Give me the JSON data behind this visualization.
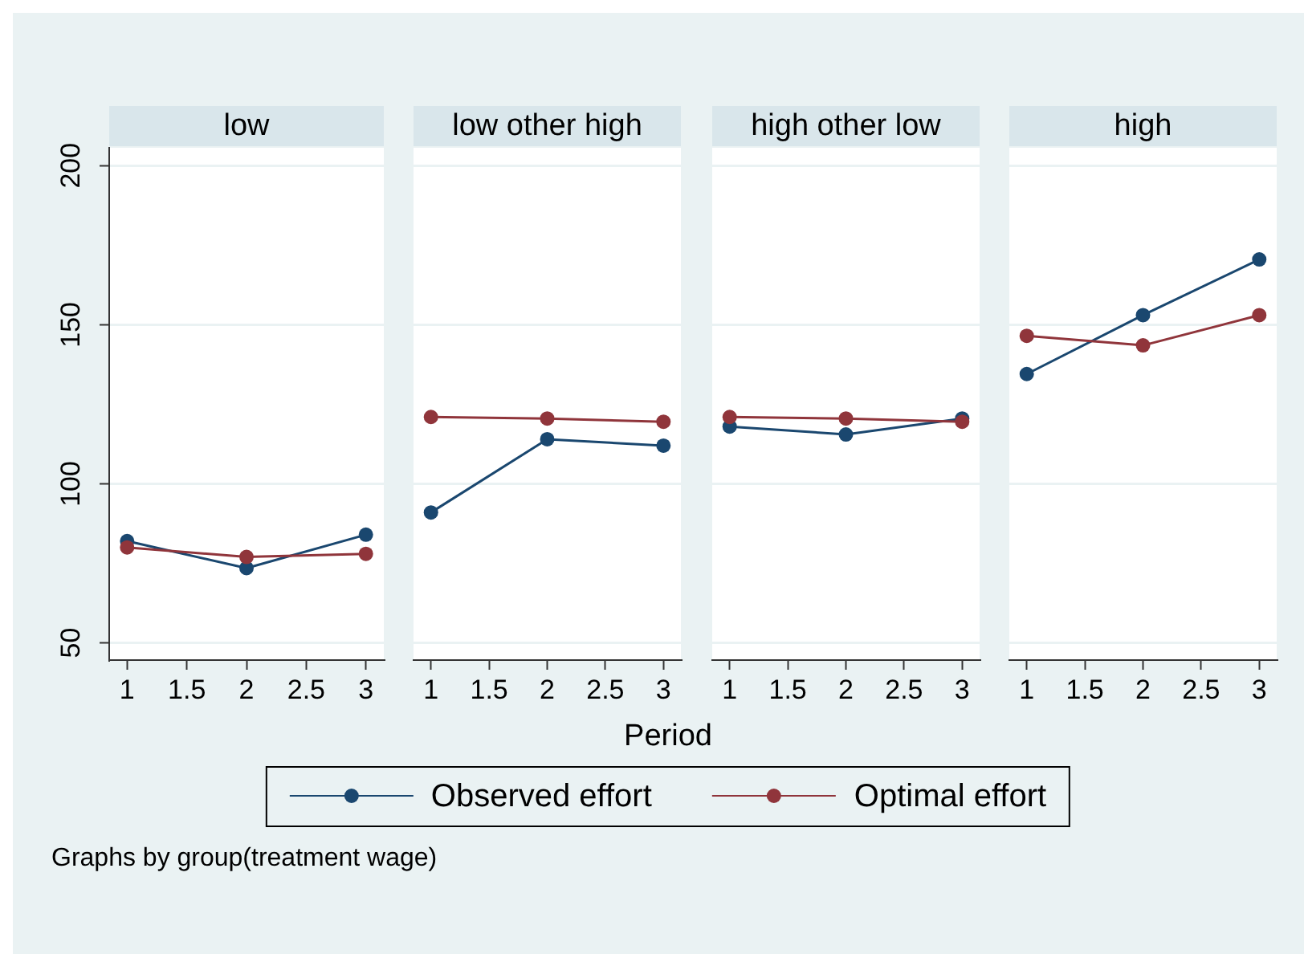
{
  "chart_data": [
    {
      "type": "line",
      "title": "low",
      "x": [
        1,
        2,
        3
      ],
      "series": [
        {
          "name": "Observed effort",
          "color": "#1a476f",
          "values": [
            82,
            73.5,
            84
          ]
        },
        {
          "name": "Optimal effort",
          "color": "#90353b",
          "values": [
            80,
            77,
            78
          ]
        }
      ],
      "xlim": [
        0.85,
        3.15
      ],
      "xticks": [
        1,
        1.5,
        2,
        2.5,
        3
      ],
      "ylim": [
        44.6,
        205.6
      ],
      "yticks": [
        50,
        100,
        150,
        200
      ],
      "grid": "y",
      "marker": "circle",
      "legend": "bottom",
      "annotations": [
        "Graphs by group(treatment wage)"
      ]
    },
    {
      "type": "line",
      "title": "low other high",
      "x": [
        1,
        2,
        3
      ],
      "series": [
        {
          "color": "#1a476f",
          "values": [
            91,
            114,
            112
          ]
        },
        {
          "color": "#90353b",
          "values": [
            121,
            120.5,
            119.5
          ]
        }
      ],
      "xlim": [
        0.85,
        3.15
      ],
      "xticks": [
        1,
        1.5,
        2,
        2.5,
        3
      ],
      "ylim": [
        44.6,
        205.6
      ],
      "yticks": [
        50,
        100,
        150,
        200
      ],
      "grid": "y",
      "marker": "circle",
      "tick_labels": "x",
      "xlabel": "Period"
    },
    {
      "type": "line",
      "title": "high other low",
      "x": [
        1,
        2,
        3
      ],
      "series": [
        {
          "color": "#1a476f",
          "values": [
            118,
            115.5,
            120.5
          ]
        },
        {
          "color": "#90353b",
          "values": [
            121,
            120.5,
            119.5
          ]
        }
      ],
      "xlim": [
        0.85,
        3.15
      ],
      "xticks": [
        1,
        1.5,
        2,
        2.5,
        3
      ],
      "ylim": [
        44.6,
        205.6
      ],
      "yticks": [
        50,
        100,
        150,
        200
      ],
      "grid": "y",
      "marker": "circle",
      "tick_labels": "x"
    },
    {
      "type": "line",
      "title": "high",
      "x": [
        1,
        2,
        3
      ],
      "series": [
        {
          "color": "#1a476f",
          "values": [
            134.5,
            153,
            170.5
          ]
        },
        {
          "color": "#90353b",
          "values": [
            146.5,
            143.5,
            153
          ]
        }
      ],
      "xlim": [
        0.85,
        3.15
      ],
      "xticks": [
        1,
        1.5,
        2,
        2.5,
        3
      ],
      "ylim": [
        44.6,
        205.6
      ],
      "yticks": [
        50,
        100,
        150,
        200
      ],
      "grid": "y",
      "marker": "circle",
      "tick_labels": "x"
    }
  ]
}
